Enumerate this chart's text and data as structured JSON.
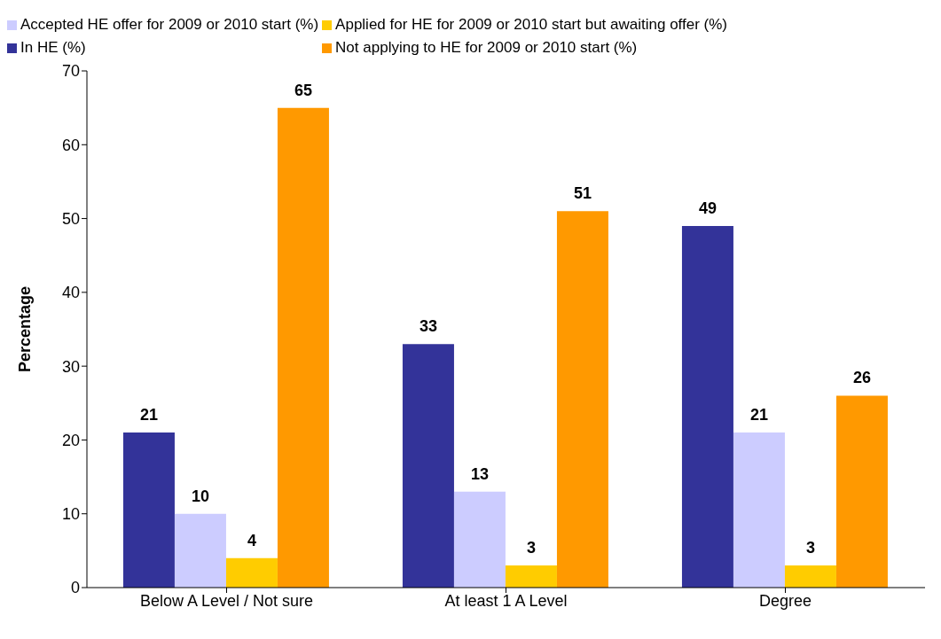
{
  "chart_data": {
    "type": "bar",
    "ylabel": "Percentage",
    "categories": [
      "Below A Level / Not sure",
      "At least 1 A Level",
      "Degree"
    ],
    "series": [
      {
        "name": "In HE (%)",
        "color": "#333399",
        "values": [
          21,
          33,
          49
        ]
      },
      {
        "name": "Accepted HE offer for 2009 or 2010 start (%)",
        "color": "#ccccff",
        "values": [
          10,
          13,
          21
        ]
      },
      {
        "name": "Applied for HE for 2009 or 2010 start but awaiting offer (%)",
        "color": "#ffcc00",
        "values": [
          4,
          3,
          3
        ]
      },
      {
        "name": "Not applying to HE for 2009 or 2010 start (%)",
        "color": "#ff9900",
        "values": [
          65,
          51,
          26
        ]
      }
    ],
    "ylim": [
      0,
      70
    ],
    "yticks": [
      0,
      10,
      20,
      30,
      40,
      50,
      60,
      70
    ],
    "grid": false,
    "legend": "top",
    "data_labels": true
  }
}
